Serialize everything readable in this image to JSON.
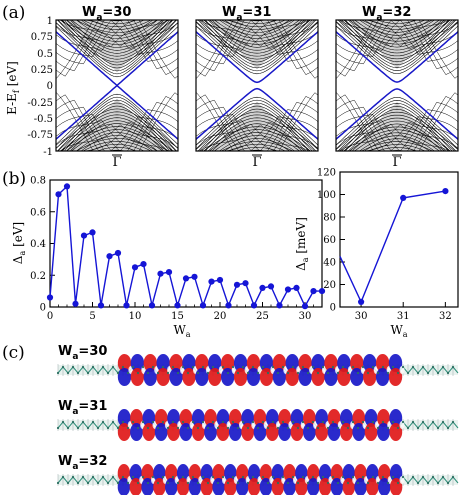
{
  "panel_labels": [
    "(a)",
    "(b)",
    "(c)"
  ],
  "band_panels": {
    "titles": [
      "W_a=30",
      "W_a=31",
      "W_a=32"
    ],
    "title_main": "W",
    "title_sub": "a",
    "title_values": [
      "=30",
      "=31",
      "=32"
    ],
    "ylabel": "E-E_f [eV]",
    "ylabel_main": "E-E",
    "ylabel_sub": "f",
    "ylabel_unit": " [eV]",
    "yticks": [
      "1",
      "0.75",
      "0.5",
      "0.25",
      "0",
      "-0.25",
      "-0.5",
      "-0.75",
      "-1"
    ],
    "xtick": "Γ",
    "ylim": [
      -1,
      1
    ],
    "gaps_ev": [
      0.0045,
      0.097,
      0.103
    ]
  },
  "chart_data": [
    {
      "type": "line",
      "ylabel": "Δ_a [eV]",
      "ylabel_main": "Δ",
      "ylabel_sub": "a",
      "ylabel_unit": " [eV]",
      "xlabel": "W_a",
      "xlabel_main": "W",
      "xlabel_sub": "a",
      "xlim": [
        0,
        32
      ],
      "ylim": [
        0,
        0.8
      ],
      "xticks": [
        0,
        5,
        10,
        15,
        20,
        25,
        30
      ],
      "yticks": [
        0,
        0.2,
        0.4,
        0.6,
        0.8
      ],
      "x": [
        0,
        1,
        2,
        3,
        4,
        5,
        6,
        7,
        8,
        9,
        10,
        11,
        12,
        13,
        14,
        15,
        16,
        17,
        18,
        19,
        20,
        21,
        22,
        23,
        24,
        25,
        26,
        27,
        28,
        29,
        30,
        31,
        32
      ],
      "y": [
        0.06,
        0.71,
        0.76,
        0.02,
        0.45,
        0.47,
        0.01,
        0.32,
        0.34,
        0.01,
        0.25,
        0.27,
        0.01,
        0.21,
        0.22,
        0.01,
        0.18,
        0.19,
        0.01,
        0.16,
        0.17,
        0.01,
        0.14,
        0.15,
        0.01,
        0.12,
        0.13,
        0.01,
        0.11,
        0.12,
        0.005,
        0.1,
        0.1
      ]
    },
    {
      "type": "line",
      "ylabel": "Δ_a [meV]",
      "ylabel_main": "Δ",
      "ylabel_sub": "a",
      "ylabel_unit": " [meV]",
      "xlabel": "W_a",
      "xlabel_main": "W",
      "xlabel_sub": "a",
      "xlim": [
        29.5,
        32.3
      ],
      "ylim": [
        0,
        120
      ],
      "xticks": [
        30,
        31,
        32
      ],
      "yticks": [
        0,
        20,
        40,
        60,
        80,
        100,
        120
      ],
      "x": [
        29.5,
        30,
        31,
        32
      ],
      "y": [
        45,
        4.5,
        97,
        103
      ]
    }
  ],
  "wavefunctions": {
    "labels_main": [
      "W",
      "W",
      "W"
    ],
    "labels_sub": [
      "a",
      "a",
      "a"
    ],
    "labels_value": [
      "=30",
      "=31",
      "=32"
    ]
  },
  "colors": {
    "band_gray": "#d2d2d2",
    "band_line": "#000000",
    "edge_state": "#1818c8",
    "series": "#1515d6",
    "lobe_red": "#e01818",
    "lobe_blue": "#1818c8",
    "lattice": "#2f8f7a"
  }
}
